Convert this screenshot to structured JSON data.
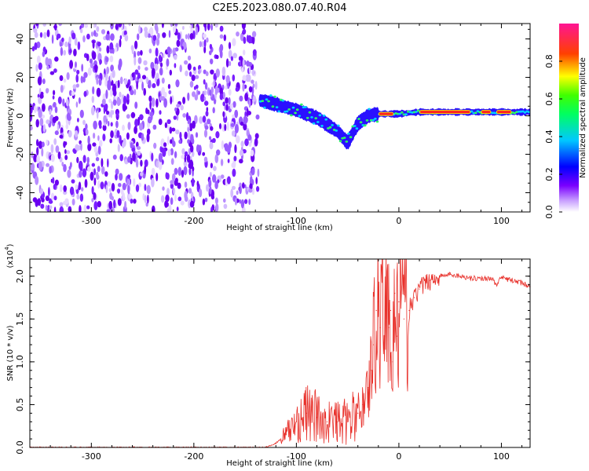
{
  "title": "C2E5.2023.080.07.40.R04",
  "chart_data": [
    {
      "type": "heatmap",
      "name": "spectrogram",
      "xlabel": "Height of straight line (km)",
      "ylabel": "Frequency (Hz)",
      "xlim": [
        -360,
        128
      ],
      "ylim": [
        -50,
        48
      ],
      "xticks": [
        -300,
        -200,
        -100,
        0,
        100
      ],
      "yticks": [
        -40,
        -20,
        0,
        20,
        40
      ],
      "colorbar": {
        "label": "Normalized spectral amplitude",
        "ticks": [
          "0.0",
          "0.2",
          "0.4",
          "0.6",
          "0.8"
        ],
        "tick_values": [
          0.0,
          0.2,
          0.4,
          0.6,
          0.8
        ],
        "range": [
          0,
          1
        ],
        "colormap": [
          "#ffffff",
          "#7a00ff",
          "#0000ff",
          "#00c8ff",
          "#00ff00",
          "#ffff00",
          "#ff0000",
          "#ff1493"
        ]
      },
      "noise_region_x": [
        -360,
        -137
      ],
      "signal_track": {
        "x": [
          -135,
          -120,
          -100,
          -80,
          -60,
          -50,
          -40,
          -30,
          -20,
          -10,
          0,
          20,
          50,
          80,
          100,
          128
        ],
        "y": [
          8,
          6,
          3,
          -1,
          -8,
          -14,
          -4,
          0,
          1,
          1,
          1,
          2,
          2,
          2,
          2,
          2
        ]
      },
      "grid": false
    },
    {
      "type": "line",
      "name": "snr",
      "xlabel": "Height of straight line (km)",
      "ylabel": "SNR (10 * v/v)",
      "y_multiplier_label": "(x10",
      "y_multiplier_exp": "4",
      "y_multiplier_close": ")",
      "xlim": [
        -360,
        128
      ],
      "ylim": [
        0,
        2.2
      ],
      "xticks": [
        -300,
        -200,
        -100,
        0,
        100
      ],
      "yticks": [
        0.0,
        0.5,
        1.0,
        1.5,
        2.0
      ],
      "ytick_labels": [
        "0.0",
        "0.5",
        "1.0",
        "1.5",
        "2.0"
      ],
      "color": "#e8302a",
      "x": [
        -360,
        -300,
        -200,
        -130,
        -120,
        -110,
        -100,
        -90,
        -80,
        -70,
        -60,
        -50,
        -40,
        -35,
        -30,
        -27,
        -25,
        -22,
        -20,
        -18,
        -16,
        -14,
        -12,
        -10,
        -8,
        -6,
        -4,
        -2,
        0,
        5,
        10,
        15,
        20,
        30,
        40,
        50,
        60,
        70,
        80,
        90,
        95,
        100,
        110,
        120,
        128
      ],
      "y": [
        0.0,
        0.0,
        0.0,
        0.0,
        0.05,
        0.15,
        0.3,
        0.4,
        0.35,
        0.3,
        0.3,
        0.3,
        0.4,
        0.5,
        0.7,
        0.9,
        1.2,
        1.6,
        1.7,
        1.4,
        2.1,
        1.3,
        1.7,
        1.4,
        1.6,
        1.0,
        1.8,
        1.3,
        1.7,
        1.5,
        1.6,
        1.75,
        1.85,
        1.95,
        2.0,
        2.02,
        2.0,
        1.98,
        1.97,
        1.98,
        1.9,
        1.98,
        1.95,
        1.92,
        1.88
      ],
      "grid": false
    }
  ]
}
